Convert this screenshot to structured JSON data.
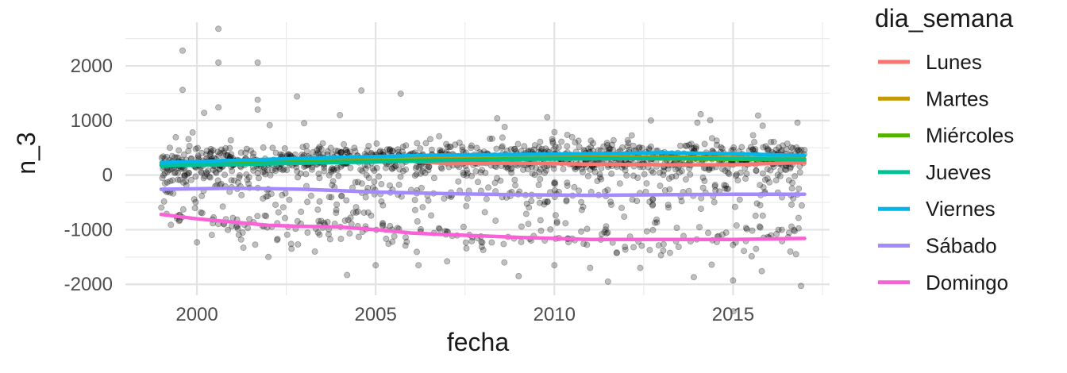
{
  "chart_data": {
    "type": "scatter",
    "title": "",
    "xlabel": "fecha",
    "ylabel": "n_3",
    "xlim": [
      1998.0,
      2017.7
    ],
    "ylim": [
      -2200,
      2800
    ],
    "x_ticks": [
      2000,
      2005,
      2010,
      2015
    ],
    "x_tick_labels": [
      "2000",
      "2005",
      "2010",
      "2015"
    ],
    "y_ticks": [
      -2000,
      -1000,
      0,
      1000,
      2000
    ],
    "y_tick_labels": [
      "-2000",
      "-1000",
      "0",
      "1000",
      "2000"
    ],
    "grid": true,
    "points_color": "#000000",
    "points_opacity": 0.25,
    "legend": {
      "title": "dia_semana",
      "position": "right"
    },
    "series": [
      {
        "name": "Lunes",
        "color": "#F8766D",
        "x": [
          1999.0,
          2001.0,
          2003.0,
          2005.0,
          2006.0,
          2007.0,
          2009.0,
          2011.0,
          2013.0,
          2015.0,
          2017.0
        ],
        "y": [
          180,
          200,
          220,
          250,
          260,
          210,
          220,
          200,
          190,
          190,
          230
        ]
      },
      {
        "name": "Martes",
        "color": "#C49A00",
        "x": [
          1999.0,
          2001.0,
          2003.0,
          2005.0,
          2007.0,
          2009.0,
          2011.0,
          2013.0,
          2015.0,
          2017.0
        ],
        "y": [
          200,
          220,
          250,
          290,
          310,
          320,
          330,
          330,
          320,
          300
        ]
      },
      {
        "name": "Miércoles",
        "color": "#53B400",
        "x": [
          1999.0,
          2001.0,
          2003.0,
          2005.0,
          2007.0,
          2009.0,
          2011.0,
          2013.0,
          2015.0,
          2017.0
        ],
        "y": [
          200,
          220,
          240,
          260,
          280,
          300,
          310,
          300,
          290,
          280
        ]
      },
      {
        "name": "Jueves",
        "color": "#00C094",
        "x": [
          1999.0,
          2001.0,
          2003.0,
          2005.0,
          2007.0,
          2009.0,
          2011.0,
          2013.0,
          2015.0,
          2017.0
        ],
        "y": [
          170,
          190,
          220,
          240,
          270,
          290,
          300,
          310,
          300,
          290
        ]
      },
      {
        "name": "Viernes",
        "color": "#00B6EB",
        "x": [
          1999.0,
          2001.0,
          2003.0,
          2005.0,
          2007.0,
          2009.0,
          2011.0,
          2013.0,
          2015.0,
          2017.0
        ],
        "y": [
          230,
          270,
          310,
          340,
          370,
          380,
          390,
          410,
          390,
          360
        ]
      },
      {
        "name": "Sábado",
        "color": "#A58AFF",
        "x": [
          1999.0,
          2001.0,
          2002.0,
          2003.0,
          2005.0,
          2007.0,
          2009.0,
          2011.0,
          2013.0,
          2015.0,
          2017.0
        ],
        "y": [
          -260,
          -240,
          -250,
          -260,
          -310,
          -340,
          -360,
          -370,
          -360,
          -350,
          -350
        ]
      },
      {
        "name": "Domingo",
        "color": "#FB61D7",
        "x": [
          1999.0,
          2000.0,
          2001.0,
          2002.0,
          2003.0,
          2004.0,
          2005.0,
          2006.0,
          2007.0,
          2009.0,
          2011.0,
          2013.0,
          2015.0,
          2017.0
        ],
        "y": [
          -720,
          -800,
          -860,
          -920,
          -940,
          -950,
          -1000,
          -1060,
          -1090,
          -1140,
          -1180,
          -1180,
          -1180,
          -1160
        ]
      }
    ],
    "outlier_points": [
      {
        "x": 1999.6,
        "y": 2280
      },
      {
        "x": 2000.6,
        "y": 2680
      },
      {
        "x": 2000.6,
        "y": 2060
      },
      {
        "x": 2001.7,
        "y": 2060
      },
      {
        "x": 1999.6,
        "y": 1560
      },
      {
        "x": 2000.6,
        "y": 1240
      },
      {
        "x": 2001.7,
        "y": 1380
      },
      {
        "x": 2002.8,
        "y": 1440
      },
      {
        "x": 2004.6,
        "y": 1550
      },
      {
        "x": 2005.7,
        "y": 1490
      },
      {
        "x": 2004.0,
        "y": 1100
      },
      {
        "x": 2008.4,
        "y": 1040
      },
      {
        "x": 2009.8,
        "y": 1060
      },
      {
        "x": 2015.7,
        "y": 1090
      },
      {
        "x": 2016.8,
        "y": 960
      },
      {
        "x": 2001.7,
        "y": 1200
      },
      {
        "x": 2000.2,
        "y": 1140
      },
      {
        "x": 2003.0,
        "y": 950
      },
      {
        "x": 2012.7,
        "y": 1000
      },
      {
        "x": 2014.0,
        "y": 960
      },
      {
        "x": 2011.5,
        "y": -1950
      },
      {
        "x": 2013.9,
        "y": -1870
      },
      {
        "x": 2015.0,
        "y": -1930
      },
      {
        "x": 2016.9,
        "y": -2030
      },
      {
        "x": 2004.2,
        "y": -1830
      },
      {
        "x": 2005.0,
        "y": -1650
      },
      {
        "x": 2009.0,
        "y": -1850
      },
      {
        "x": 2012.4,
        "y": -1700
      },
      {
        "x": 2002.0,
        "y": -1500
      },
      {
        "x": 2007.0,
        "y": -1580
      },
      {
        "x": 2010.0,
        "y": -1650
      },
      {
        "x": 2015.8,
        "y": -1760
      },
      {
        "x": 2000.0,
        "y": -1230
      },
      {
        "x": 2001.3,
        "y": -1330
      },
      {
        "x": 2003.3,
        "y": -1400
      },
      {
        "x": 2006.2,
        "y": -1650
      },
      {
        "x": 2008.6,
        "y": -1600
      },
      {
        "x": 2014.4,
        "y": -1640
      },
      {
        "x": 2016.6,
        "y": -1400
      },
      {
        "x": 2011.0,
        "y": -1700
      }
    ]
  }
}
